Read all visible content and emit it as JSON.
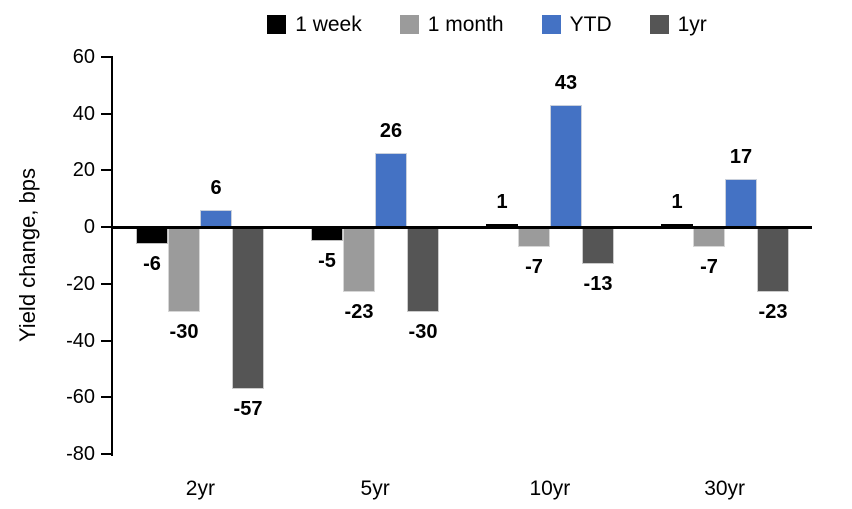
{
  "chart_data": {
    "type": "bar",
    "title": "",
    "xlabel": "",
    "ylabel": "Yield change, bps",
    "categories": [
      "2yr",
      "5yr",
      "10yr",
      "30yr"
    ],
    "series": [
      {
        "name": "1 week",
        "color": "#000000",
        "values": [
          -6,
          -5,
          1,
          1
        ]
      },
      {
        "name": "1 month",
        "color": "#9B9B9B",
        "values": [
          -30,
          -23,
          -7,
          -7
        ]
      },
      {
        "name": "YTD",
        "color": "#4472C4",
        "values": [
          6,
          26,
          43,
          17
        ]
      },
      {
        "name": "1yr",
        "color": "#555555",
        "values": [
          -57,
          -30,
          -13,
          -23
        ]
      }
    ],
    "ylim": [
      -80,
      60
    ],
    "yticks": [
      60,
      40,
      20,
      0,
      -20,
      -40,
      -60,
      -80
    ],
    "grid": false,
    "legend_position": "top",
    "data_labels": true,
    "axis_color": "#000000",
    "text_color": "#000000"
  }
}
